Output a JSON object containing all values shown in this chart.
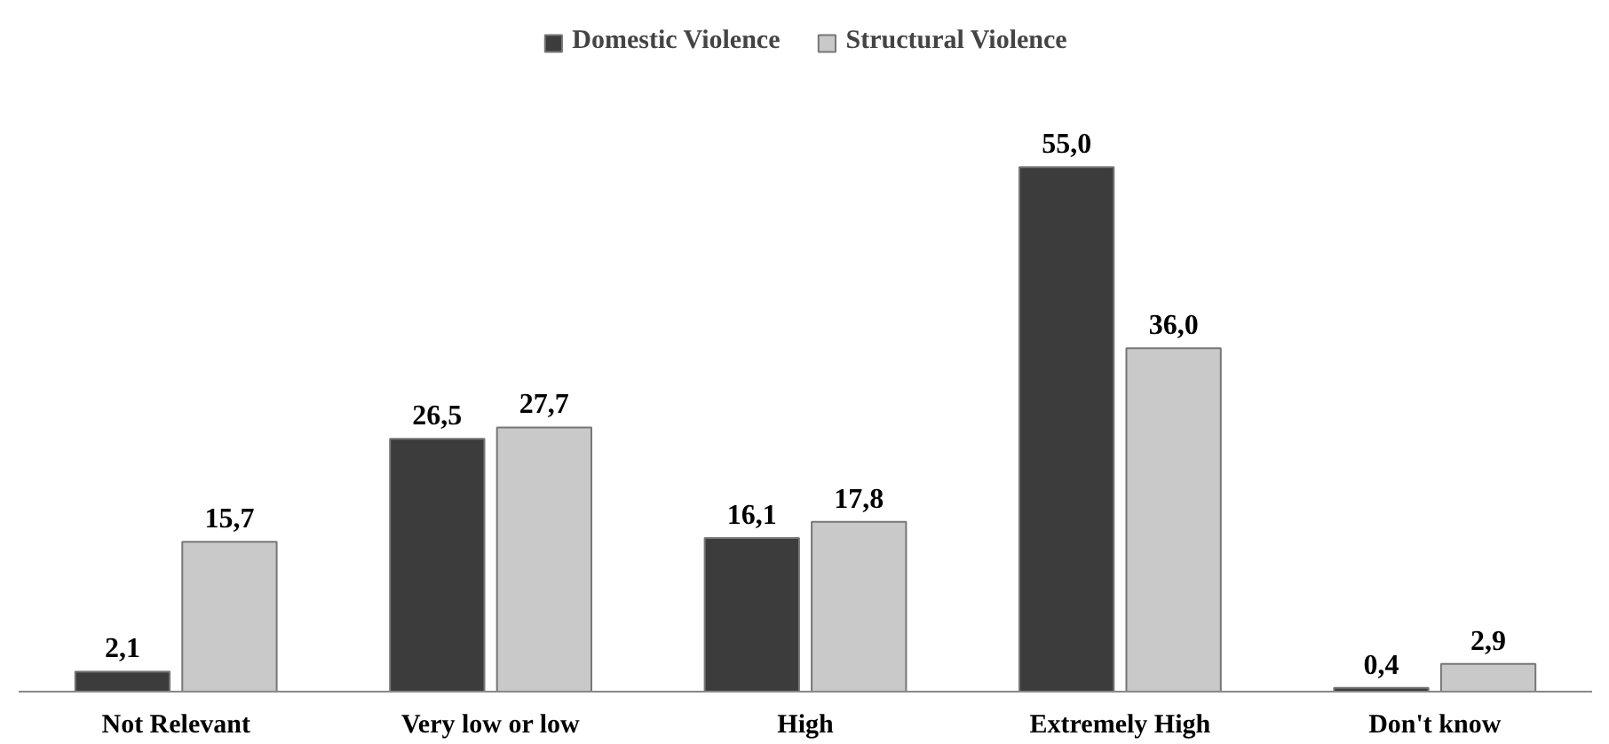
{
  "chart_data": {
    "type": "bar",
    "categories": [
      "Not Relevant",
      "Very low or low",
      "High",
      "Extremely High",
      "Don't know"
    ],
    "series": [
      {
        "name": "Domestic Violence",
        "color": "#3c3c3c",
        "values": [
          2.1,
          26.5,
          16.1,
          55.0,
          0.4
        ],
        "value_labels": [
          "2,1",
          "26,5",
          "16,1",
          "55,0",
          "0,4"
        ]
      },
      {
        "name": "Structural Violence",
        "color": "#c9c9c9",
        "values": [
          15.7,
          27.7,
          17.8,
          36.0,
          2.9
        ],
        "value_labels": [
          "15,7",
          "27,7",
          "17,8",
          "36,0",
          "2,9"
        ]
      }
    ],
    "legend": "top"
  }
}
